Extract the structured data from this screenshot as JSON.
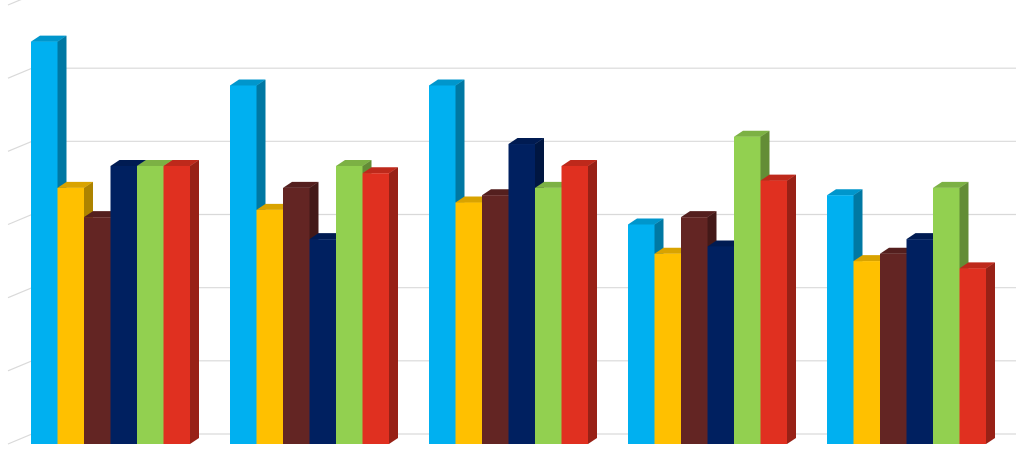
{
  "chart_data": {
    "type": "bar",
    "style": "3d-clustered-column",
    "categories": [
      "",
      "",
      "",
      "",
      ""
    ],
    "series": [
      {
        "color": "#00b0f0",
        "values": [
          55,
          49,
          49,
          30,
          34
        ]
      },
      {
        "color": "#ffc000",
        "values": [
          35,
          32,
          33,
          26,
          25
        ]
      },
      {
        "color": "#632523",
        "values": [
          31,
          35,
          34,
          31,
          26
        ]
      },
      {
        "color": "#002060",
        "values": [
          38,
          28,
          41,
          27,
          28
        ]
      },
      {
        "color": "#92d050",
        "values": [
          38,
          38,
          35,
          42,
          35
        ]
      },
      {
        "color": "#e03020",
        "values": [
          38,
          37,
          38,
          36,
          24
        ]
      }
    ],
    "ylim": [
      0,
      60
    ],
    "grid": true,
    "legend": "none",
    "title": "",
    "xlabel": "",
    "ylabel": ""
  }
}
